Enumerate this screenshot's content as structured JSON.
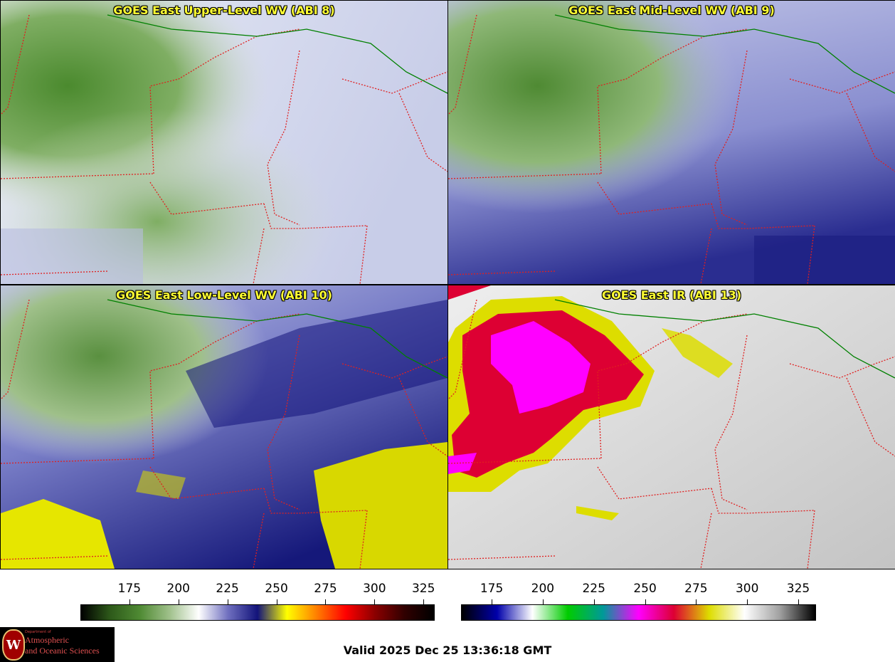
{
  "panels": [
    {
      "title": "GOES East Upper-Level WV (ABI 8)"
    },
    {
      "title": "GOES East Mid-Level WV (ABI 9)"
    },
    {
      "title": "GOES East Low-Level WV (ABI 10)"
    },
    {
      "title": "GOES East IR (ABI 13)"
    }
  ],
  "colorbar_wv": {
    "ticks": [
      "175",
      "200",
      "225",
      "250",
      "275",
      "300",
      "325"
    ],
    "range": [
      150,
      330
    ],
    "colors": [
      "#000000",
      "#2e5a1a",
      "#4f8a33",
      "#9fc08a",
      "#ffffff",
      "#6f6fbf",
      "#12137a",
      "#ffff00",
      "#ff8000",
      "#ff0000",
      "#8a0000",
      "#300000",
      "#000000"
    ]
  },
  "colorbar_ir": {
    "ticks": [
      "175",
      "200",
      "225",
      "250",
      "275",
      "300",
      "325"
    ],
    "range": [
      160,
      333
    ],
    "colors": [
      "#000000",
      "#0000aa",
      "#ffffff",
      "#00cc00",
      "#009999",
      "#ff00ff",
      "#dd0033",
      "#dddd00",
      "#ffffff",
      "#a0a0a0",
      "#000000"
    ]
  },
  "valid_time": "Valid 2025 Dec 25 13:36:18 GMT",
  "logo": {
    "dept_text": "Department of",
    "line1": "Atmospheric",
    "line2": "and Oceanic Sciences",
    "seal_letter": "W"
  },
  "colors": {
    "border_state": "#e02020",
    "border_intl": "#008000",
    "title_text": "#ffff33"
  }
}
